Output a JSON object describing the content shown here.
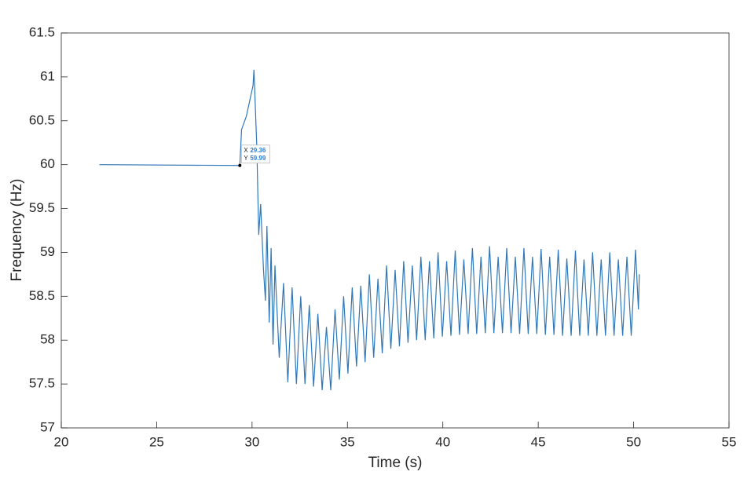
{
  "chart_data": {
    "type": "line",
    "x_label": "Time (s)",
    "y_label": "Frequency (Hz)",
    "color": "#2f77b8",
    "x": [
      22,
      29.36,
      29.45,
      29.7,
      30.05,
      30.1,
      30.25,
      30.35,
      30.45,
      30.6,
      30.7,
      30.78,
      30.9,
      31.0,
      31.1,
      31.2,
      31.425,
      31.65,
      31.875,
      32.1,
      32.325,
      32.55,
      32.775,
      33.0,
      33.225,
      33.45,
      33.675,
      33.9,
      34.125,
      34.35,
      34.575,
      34.8,
      35.025,
      35.25,
      35.475,
      35.7,
      35.925,
      36.15,
      36.375,
      36.6,
      36.825,
      37.05,
      37.275,
      37.5,
      37.725,
      37.95,
      38.175,
      38.4,
      38.625,
      38.85,
      39.075,
      39.3,
      39.525,
      39.75,
      39.975,
      40.2,
      40.425,
      40.65,
      40.875,
      41.1,
      41.325,
      41.55,
      41.775,
      42.0,
      42.225,
      42.45,
      42.675,
      42.9,
      43.125,
      43.35,
      43.575,
      43.8,
      44.025,
      44.25,
      44.475,
      44.7,
      44.925,
      45.15,
      45.375,
      45.6,
      45.825,
      46.05,
      46.275,
      46.5,
      46.725,
      46.95,
      47.175,
      47.4,
      47.625,
      47.85,
      48.075,
      48.3,
      48.525,
      48.75,
      48.975,
      49.2,
      49.425,
      49.65,
      49.875,
      50.1,
      50.25,
      50.3
    ],
    "values": [
      60,
      59.99,
      60.4,
      60.55,
      60.9,
      61.08,
      60.2,
      59.2,
      59.55,
      58.8,
      58.45,
      59.3,
      58.2,
      59.05,
      57.95,
      58.85,
      57.8,
      58.65,
      57.52,
      58.6,
      57.5,
      58.5,
      57.5,
      58.4,
      57.47,
      58.3,
      57.43,
      58.15,
      57.43,
      58.35,
      57.55,
      58.5,
      57.62,
      58.6,
      57.7,
      58.62,
      57.75,
      58.75,
      57.8,
      58.7,
      57.85,
      58.85,
      57.9,
      58.8,
      57.93,
      58.9,
      57.97,
      58.85,
      58.0,
      58.95,
      58.0,
      58.9,
      58.02,
      59.0,
      58.04,
      58.9,
      58.05,
      59.02,
      58.06,
      58.92,
      58.07,
      59.05,
      58.07,
      58.95,
      58.08,
      59.07,
      58.08,
      58.95,
      58.08,
      59.05,
      58.08,
      58.95,
      58.07,
      59.05,
      58.07,
      58.95,
      58.07,
      59.04,
      58.06,
      58.95,
      58.06,
      59.03,
      58.05,
      58.93,
      58.05,
      59.02,
      58.05,
      58.92,
      58.05,
      59.0,
      58.05,
      58.92,
      58.05,
      59.0,
      58.05,
      58.92,
      58.05,
      58.95,
      58.05,
      59.03,
      58.35,
      58.75
    ],
    "xlim": [
      20,
      55
    ],
    "xticks": [
      20,
      25,
      30,
      35,
      40,
      45,
      50,
      55
    ],
    "ylim": [
      57,
      61.5
    ],
    "yticks": [
      57,
      57.5,
      58,
      58.5,
      59,
      59.5,
      60,
      60.5,
      61,
      61.5
    ],
    "grid": false,
    "datatip": {
      "x_name": "X",
      "x": 29.36,
      "y_name": "Y",
      "y": 59.99
    }
  }
}
